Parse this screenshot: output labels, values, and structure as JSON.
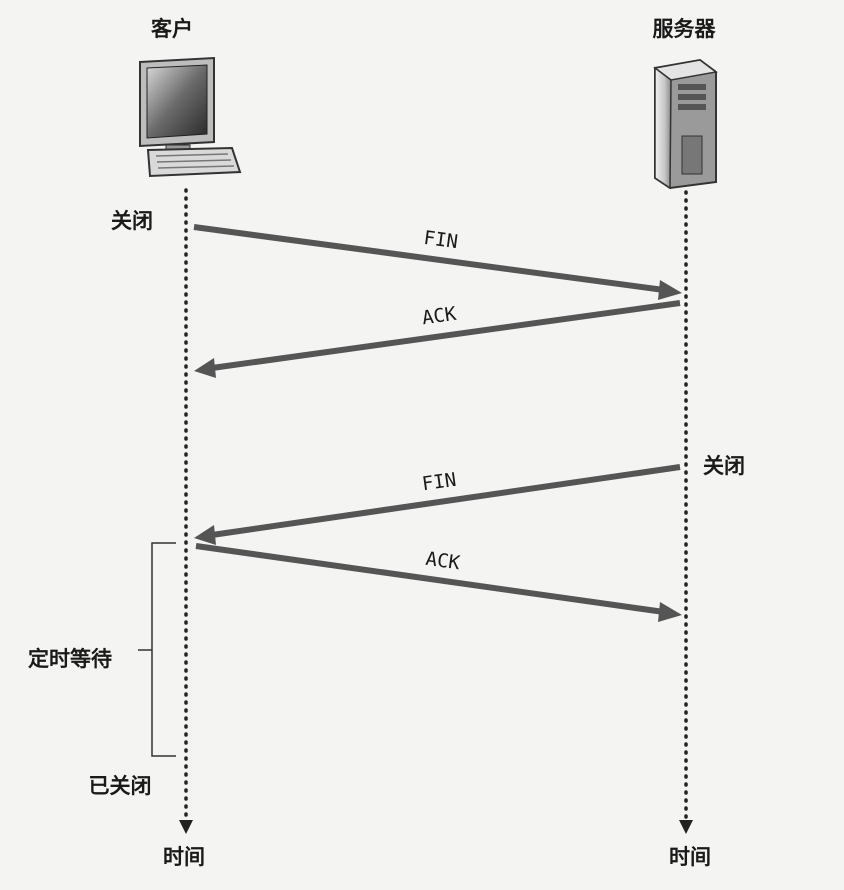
{
  "actors": {
    "client": {
      "label": "客户",
      "icon": "desktop-computer-icon"
    },
    "server": {
      "label": "服务器",
      "icon": "tower-server-icon"
    }
  },
  "client_events": {
    "close": "关闭",
    "timed_wait": "定时等待",
    "closed": "已关闭",
    "time": "时间"
  },
  "server_events": {
    "close": "关闭",
    "time": "时间"
  },
  "messages": [
    {
      "label": "FIN",
      "from": "client",
      "to": "server"
    },
    {
      "label": "ACK",
      "from": "server",
      "to": "client"
    },
    {
      "label": "FIN",
      "from": "server",
      "to": "client"
    },
    {
      "label": "ACK",
      "from": "client",
      "to": "server"
    }
  ],
  "colors": {
    "arrow": "#555555",
    "timeline": "#222222",
    "text": "#1a1a1a"
  }
}
